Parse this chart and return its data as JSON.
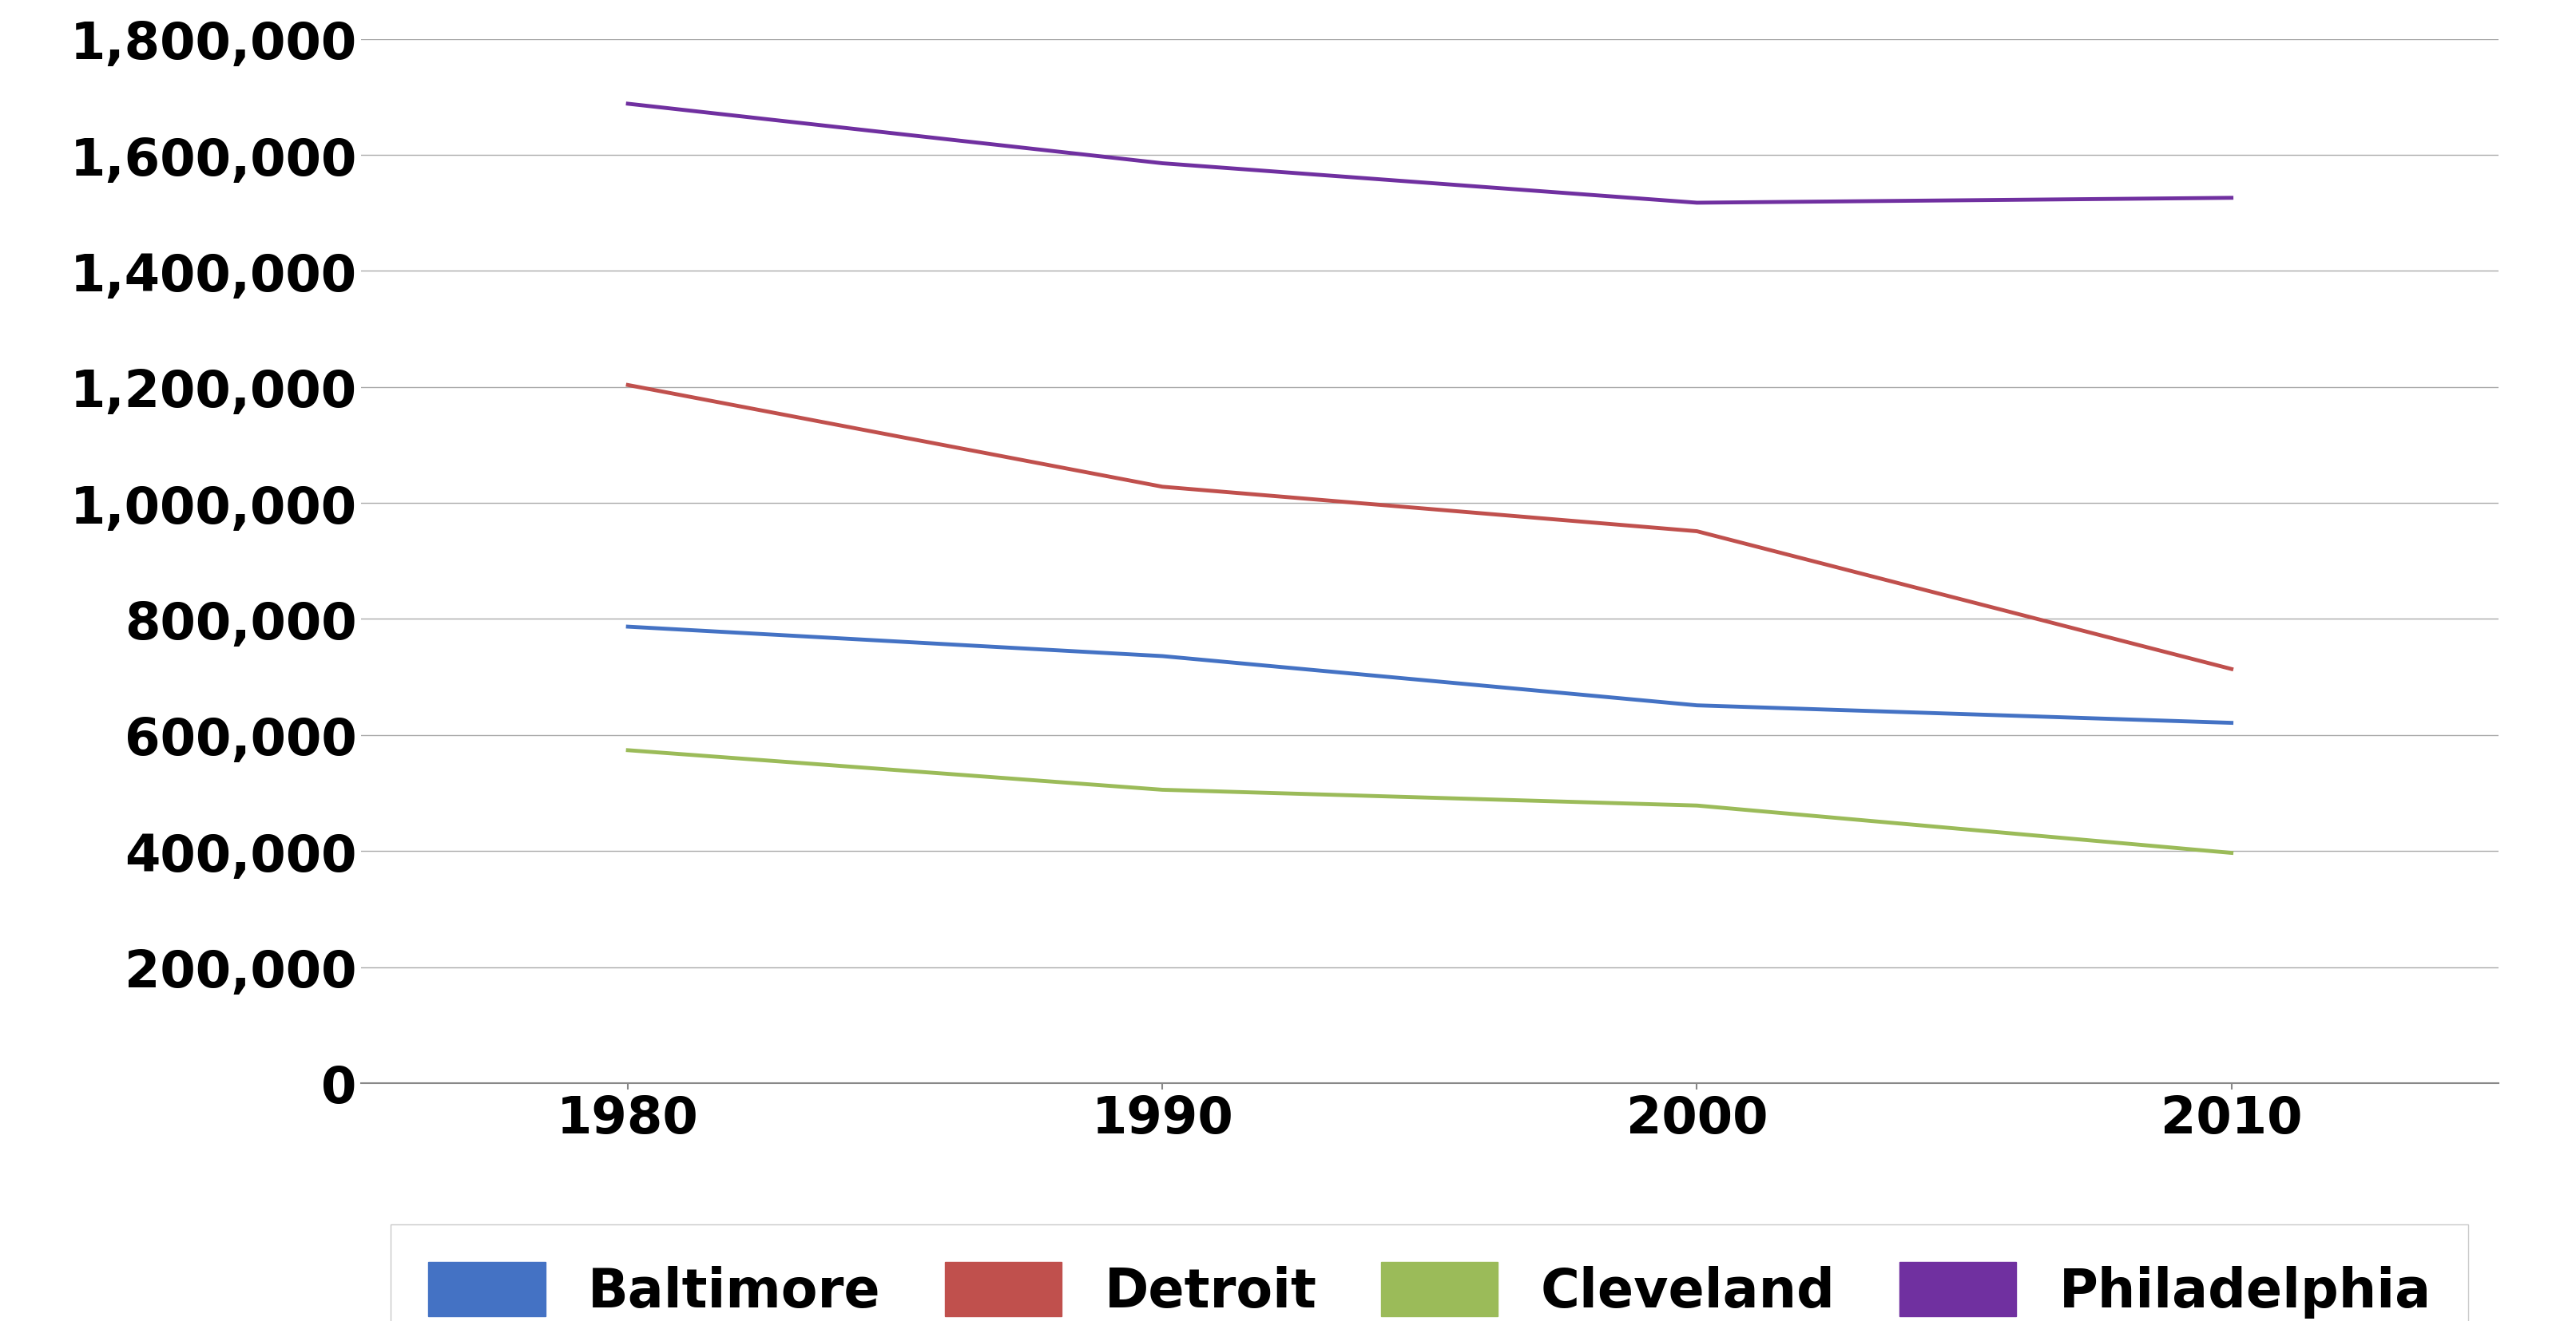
{
  "years": [
    1980,
    1990,
    2000,
    2010
  ],
  "baltimore": [
    786775,
    736014,
    651154,
    620961
  ],
  "detroit": [
    1203339,
    1027974,
    951270,
    713777
  ],
  "cleveland": [
    573822,
    505616,
    478403,
    396815
  ],
  "philadelphia": [
    1688210,
    1585577,
    1517550,
    1526006
  ],
  "colors": {
    "baltimore": "#4472C4",
    "detroit": "#C0504D",
    "cleveland": "#9BBB59",
    "philadelphia": "#7030A0"
  },
  "legend_labels": [
    "Baltimore",
    "Detroit",
    "Cleveland",
    "Philadelphia"
  ],
  "ylim": [
    0,
    1800000
  ],
  "yticks": [
    0,
    200000,
    400000,
    600000,
    800000,
    1000000,
    1200000,
    1400000,
    1600000,
    1800000
  ],
  "xticks": [
    1980,
    1990,
    2000,
    2010
  ],
  "line_width": 3.5,
  "background_color": "#FFFFFF",
  "grid_color": "#AAAAAA",
  "tick_fontsize": 46,
  "legend_fontsize": 48,
  "xlim": [
    1975,
    2015
  ]
}
